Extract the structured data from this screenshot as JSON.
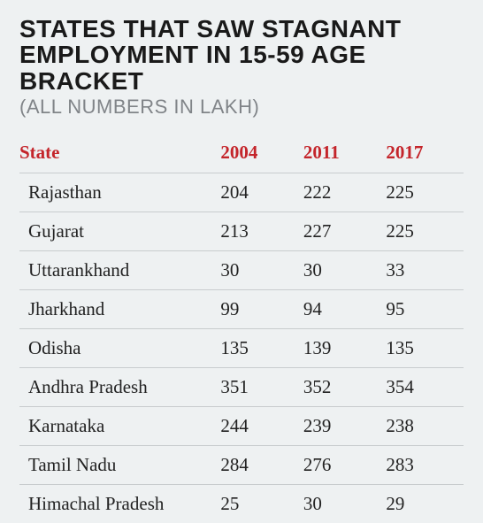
{
  "title_line1": "STATES THAT SAW STAGNANT",
  "title_line2": "EMPLOYMENT IN 15-59 AGE BRACKET",
  "subtitle": "(ALL NUMBERS IN LAKH)",
  "table": {
    "header_color": "#c4252b",
    "row_border_color": "#c8ccce",
    "background_color": "#eef1f2",
    "body_fontsize": 21,
    "columns": [
      "State",
      "2004",
      "2011",
      "2017"
    ],
    "rows": [
      [
        "Rajasthan",
        "204",
        "222",
        "225"
      ],
      [
        "Gujarat",
        "213",
        "227",
        "225"
      ],
      [
        "Uttarankhand",
        "30",
        "30",
        "33"
      ],
      [
        "Jharkhand",
        "99",
        "94",
        "95"
      ],
      [
        "Odisha",
        "135",
        "139",
        "135"
      ],
      [
        "Andhra Pradesh",
        "351",
        "352",
        "354"
      ],
      [
        "Karnataka",
        "244",
        "239",
        "238"
      ],
      [
        "Tamil Nadu",
        "284",
        "276",
        "283"
      ],
      [
        "Himachal Pradesh",
        "25",
        "30",
        "29"
      ]
    ]
  }
}
